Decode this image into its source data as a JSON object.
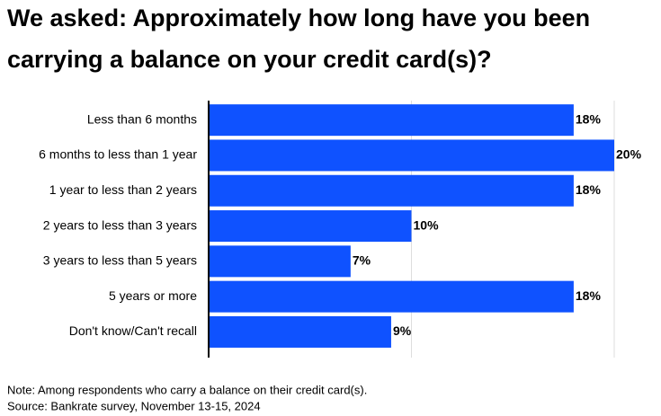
{
  "chart_data": {
    "type": "barh",
    "title": "We asked: Approximately how long have you been carrying a balance on your credit card(s)?",
    "categories": [
      "Less than 6 months",
      "6 months to less than 1 year",
      "1 year to less than 2 years",
      "2 years to less than 3 years",
      "3 years to less than 5 years",
      "5 years or more",
      "Don't know/Can't recall"
    ],
    "values": [
      18,
      20,
      18,
      10,
      7,
      18,
      9
    ],
    "value_labels": [
      "18%",
      "20%",
      "18%",
      "10%",
      "7%",
      "18%",
      "9%"
    ],
    "color": "#0f52ff",
    "xlim": [
      0,
      20
    ],
    "gridlines": [
      10,
      20
    ],
    "note": "Note: Among respondents who carry a balance on their credit card(s).",
    "source": "Source: Bankrate survey, November 13-15, 2024"
  }
}
